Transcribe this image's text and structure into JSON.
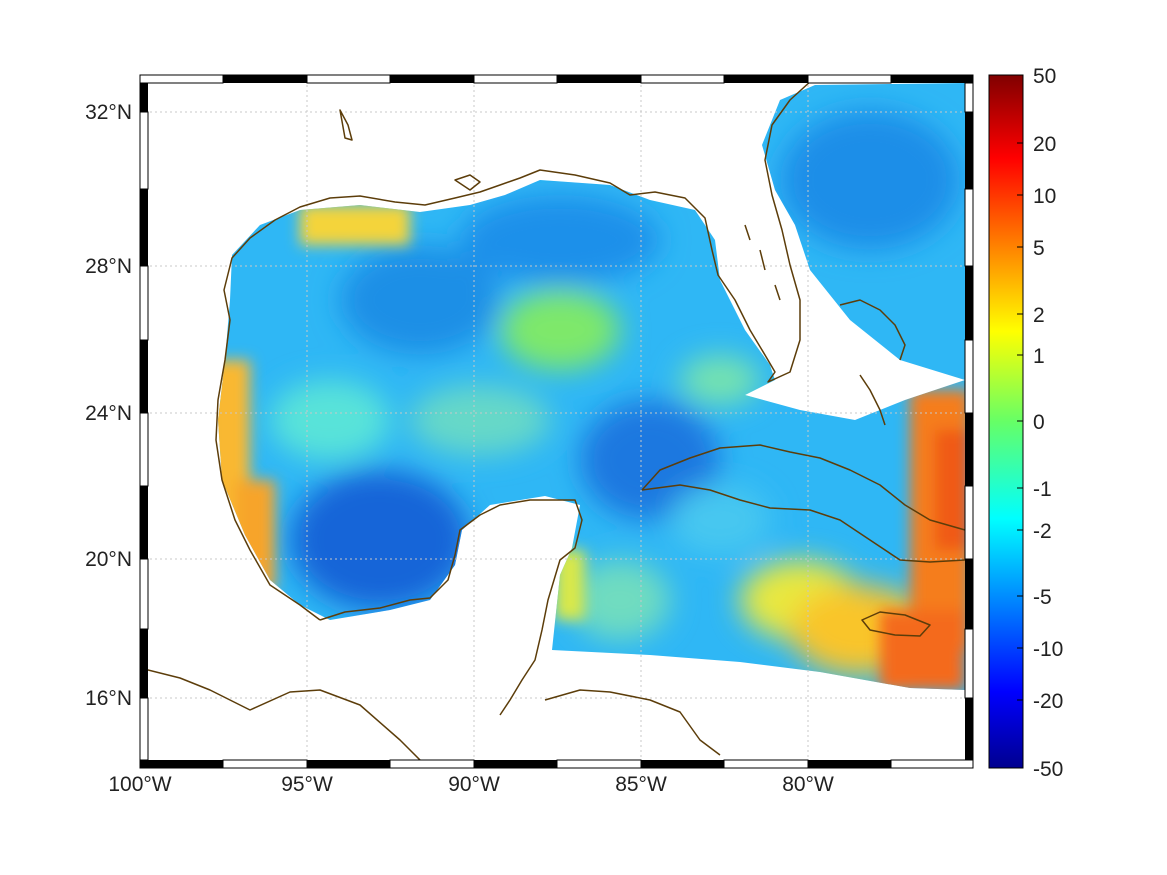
{
  "map": {
    "lon_ticks": [
      {
        "value": -100,
        "label": "100°W"
      },
      {
        "value": -95,
        "label": "95°W"
      },
      {
        "value": -90,
        "label": "90°W"
      },
      {
        "value": -85,
        "label": "85°W"
      },
      {
        "value": -80,
        "label": "80°W"
      }
    ],
    "lat_ticks": [
      {
        "value": 16,
        "label": "16°N"
      },
      {
        "value": 20,
        "label": "20°N"
      },
      {
        "value": 24,
        "label": "24°N"
      },
      {
        "value": 28,
        "label": "28°N"
      },
      {
        "value": 32,
        "label": "32°N"
      }
    ],
    "lon_range": [
      -100,
      -75.1
    ],
    "lat_range": [
      14.2,
      32.9
    ],
    "coast_color": "#5c3d0a",
    "grid": true
  },
  "colorbar": {
    "ticks": [
      "50",
      "20",
      "10",
      "5",
      "2",
      "1",
      "0",
      "-1",
      "-2",
      "-5",
      "-10",
      "-20",
      "-50"
    ],
    "range": [
      -50,
      50
    ],
    "colormap": "jet"
  }
}
